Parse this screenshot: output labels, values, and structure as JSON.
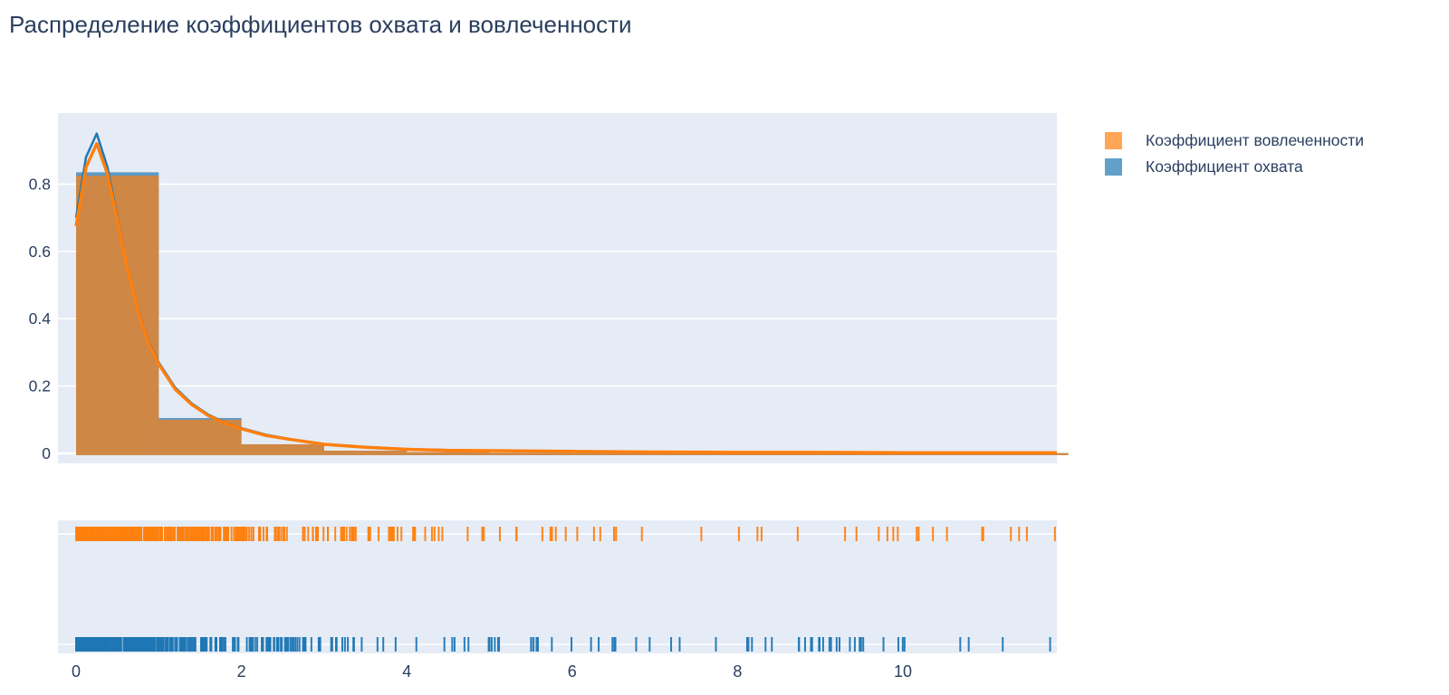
{
  "title": "Распределение коэффициентов охвата и вовлеченности",
  "colors": {
    "text": "#2a3f5f",
    "plot_background": "#e5ecf6",
    "gridline": "#ffffff",
    "engagement": "#ff7f0e",
    "reach": "#1f77b4"
  },
  "chart_data": {
    "type": "distplot (histogram + kde curve + rug)",
    "title": "Распределение коэффициентов охвата и вовлеченности",
    "legend_position": "top-right",
    "grid": "horizontal white gridlines on light blue panel",
    "xaxis": {
      "range": [
        -0.22,
        11.86
      ],
      "tick_values": [
        0,
        2,
        4,
        6,
        8,
        10
      ],
      "tick_labels": [
        "0",
        "2",
        "4",
        "6",
        "8",
        "10"
      ]
    },
    "yaxis": {
      "range": [
        -0.03,
        1.01
      ],
      "tick_values": [
        0,
        0.2,
        0.4,
        0.6,
        0.8
      ],
      "tick_labels": [
        "0",
        "0.2",
        "0.4",
        "0.6",
        "0.8"
      ]
    },
    "histogram": {
      "bin_start": 0,
      "bin_size": 1,
      "opacity": 0.7
    },
    "series": [
      {
        "name": "Коэффициент вовлеченности",
        "color": "#ff7f0e",
        "hist_heights": [
          0.825,
          0.1,
          0.027,
          0.008,
          0.004,
          0.002,
          0.001,
          0.001,
          0.001,
          0.001,
          0.001,
          0.001
        ],
        "kde": {
          "x": [
            0,
            0.12,
            0.25,
            0.38,
            0.5,
            0.62,
            0.75,
            0.88,
            1.0,
            1.2,
            1.4,
            1.6,
            1.8,
            2.0,
            2.3,
            2.6,
            3.0,
            3.5,
            4.0,
            4.5,
            5.0,
            6.0,
            7.0,
            8.0,
            9.0,
            10.0,
            11.0,
            11.86
          ],
          "y": [
            0.675,
            0.85,
            0.92,
            0.83,
            0.69,
            0.55,
            0.42,
            0.325,
            0.265,
            0.19,
            0.145,
            0.112,
            0.09,
            0.073,
            0.053,
            0.041,
            0.027,
            0.018,
            0.012,
            0.009,
            0.008,
            0.006,
            0.004,
            0.003,
            0.003,
            0.002,
            0.002,
            0.002
          ]
        },
        "rug_seed": 7,
        "line_width": 3.5
      },
      {
        "name": "Коэффициент охвата",
        "color": "#1f77b4",
        "hist_heights": [
          0.835,
          0.105,
          0.027,
          0.008,
          0.004,
          0.002,
          0.001,
          0.001,
          0.001,
          0.001,
          0.001,
          0.001
        ],
        "kde": {
          "x": [
            0,
            0.12,
            0.25,
            0.38,
            0.5,
            0.62,
            0.75,
            0.88,
            1.0,
            1.2,
            1.4,
            1.6,
            1.8,
            2.0,
            2.3,
            2.6,
            3.0,
            3.5,
            4.0,
            4.5,
            5.0,
            6.0,
            7.0,
            8.0,
            9.0,
            10.0,
            11.0,
            11.86
          ],
          "y": [
            0.7,
            0.88,
            0.95,
            0.85,
            0.7,
            0.555,
            0.425,
            0.33,
            0.27,
            0.195,
            0.148,
            0.115,
            0.092,
            0.075,
            0.055,
            0.042,
            0.028,
            0.019,
            0.013,
            0.01,
            0.008,
            0.006,
            0.004,
            0.003,
            0.003,
            0.002,
            0.002,
            0.002
          ]
        },
        "rug_seed": 29,
        "line_width": 2.5
      }
    ],
    "rug": {
      "description": "one tick per observation; solid block from 0 to ~3.2, sparse tail out to ~11.7; engagement (orange) row on top, reach (blue) row below",
      "count_per_series": 420,
      "x_min": 0,
      "x_max": 11.86,
      "exp_mean": 1.15,
      "uniform_share": 0.14
    }
  }
}
